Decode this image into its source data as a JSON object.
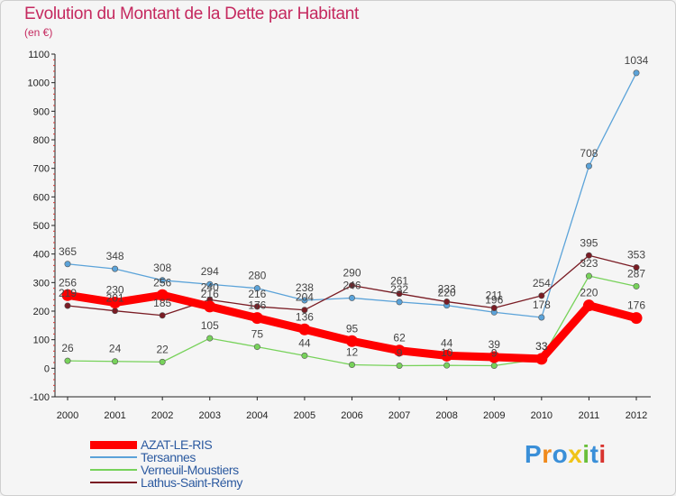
{
  "title": "Evolution du Montant de la Dette par Habitant",
  "subtitle": "(en €)",
  "brand": {
    "letters": [
      "P",
      "r",
      "o",
      "x",
      "i",
      "t",
      "i"
    ],
    "colors": [
      "#3a8fd8",
      "#f08a1c",
      "#3a8fd8",
      "#f0c418",
      "#6abf3a",
      "#3a8fd8",
      "#d8342f"
    ]
  },
  "chart_data": {
    "type": "line",
    "title": "Evolution du Montant de la Dette par Habitant",
    "ylabel": "(en €)",
    "xlabel": "",
    "x": [
      "2000",
      "2001",
      "2002",
      "2003",
      "2004",
      "2005",
      "2006",
      "2007",
      "2008",
      "2009",
      "2010",
      "2011",
      "2012"
    ],
    "ylim": [
      -100,
      1100
    ],
    "yticks": [
      "-100",
      "0",
      "100",
      "200",
      "300",
      "400",
      "500",
      "600",
      "700",
      "800",
      "900",
      "1000",
      "1100"
    ],
    "grid": false,
    "legend_position": "bottom-left",
    "series": [
      {
        "name": "AZAT-LE-RIS",
        "color": "#ff0000",
        "values": [
          256,
          230,
          256,
          216,
          176,
          136,
          95,
          62,
          44,
          39,
          33,
          220,
          176
        ],
        "labels": [
          "256",
          "230",
          "256",
          "216",
          "176",
          "136",
          "95",
          "62",
          "44",
          "39",
          "33",
          "220",
          "176"
        ]
      },
      {
        "name": "Tersannes",
        "color": "#5ba3d9",
        "values": [
          365,
          348,
          308,
          294,
          280,
          238,
          246,
          232,
          220,
          196,
          178,
          708,
          1034
        ],
        "labels": [
          "365",
          "348",
          "308",
          "294",
          "280",
          "238",
          "246",
          "232",
          "220",
          "196",
          "178",
          "708",
          "1034"
        ]
      },
      {
        "name": "Verneuil-Moustiers",
        "color": "#77d25a",
        "values": [
          26,
          24,
          22,
          105,
          75,
          44,
          12,
          9,
          10,
          9,
          33,
          323,
          287
        ],
        "labels": [
          "26",
          "24",
          "22",
          "105",
          "75",
          "44",
          "12",
          "9",
          "10",
          "9",
          "33",
          "323",
          "287"
        ]
      },
      {
        "name": "Lathus-Saint-Rémy",
        "color": "#7a1c24",
        "values": [
          219,
          201,
          185,
          240,
          216,
          204,
          290,
          261,
          233,
          211,
          254,
          395,
          353
        ],
        "labels": [
          "219",
          "201",
          "185",
          "240",
          "216",
          "204",
          "290",
          "261",
          "233",
          "211",
          "254",
          "395",
          "353"
        ]
      }
    ]
  }
}
